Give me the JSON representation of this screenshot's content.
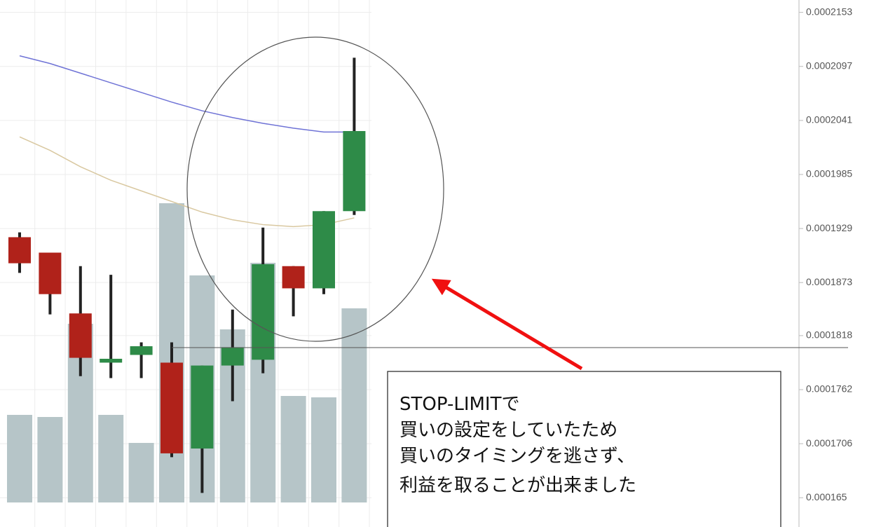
{
  "chart_data": {
    "type": "candlestick",
    "ylim": [
      0.000164,
      0.000216
    ],
    "yticks": [
      0.000165,
      0.0001706,
      0.0001762,
      0.0001818,
      0.0001873,
      0.0001929,
      0.0001985,
      0.0002041,
      0.0002097,
      0.0002153
    ],
    "grid": true,
    "up_color": "#2e8b48",
    "down_color": "#b0221a",
    "open": [
      0.000192,
      0.0001904,
      0.0001841,
      0.000179,
      0.0001798,
      0.000179,
      0.0001701,
      0.0001787,
      0.0001793,
      0.000189,
      0.0001867,
      0.0001947
    ],
    "high": [
      0.0001925,
      0.0001904,
      0.000189,
      0.0001881,
      0.0001811,
      0.0001811,
      0.0001787,
      0.0001845,
      0.000193,
      0.000189,
      0.0001947,
      0.0002106
    ],
    "low": [
      0.0001883,
      0.000184,
      0.0001776,
      0.0001774,
      0.0001774,
      0.0001692,
      0.0001655,
      0.000175,
      0.0001779,
      0.0001838,
      0.0001861,
      0.0001943
    ],
    "close": [
      0.0001893,
      0.0001861,
      0.0001795,
      0.0001794,
      0.0001807,
      0.0001696,
      0.0001787,
      0.0001806,
      0.0001892,
      0.0001867,
      0.0001947,
      0.000203
    ],
    "volume": {
      "color": "#b6c5c8",
      "ylim": [
        0,
        450
      ],
      "values": [
        125,
        122,
        255,
        125,
        85,
        427,
        324,
        247,
        342,
        152,
        150,
        277
      ]
    },
    "lines": [
      {
        "color": "#6f73d6",
        "values": [
          0.0002108,
          0.00021,
          0.000209,
          0.000208,
          0.000207,
          0.000206,
          0.0002051,
          0.0002044,
          0.0002038,
          0.0002033,
          0.0002029,
          0.0002029
        ]
      },
      {
        "color": "#d9c8a0",
        "values": [
          0.0002024,
          0.000201,
          0.0001993,
          0.0001979,
          0.0001968,
          0.0001957,
          0.0001946,
          0.0001938,
          0.0001933,
          0.0001931,
          0.0001933,
          0.000194
        ]
      }
    ],
    "annotation": [
      "STOP-LIMITで",
      "買いの設定をしていたため",
      "買いのタイミングを逃さず、",
      "利益を取ることが出来ました"
    ]
  }
}
